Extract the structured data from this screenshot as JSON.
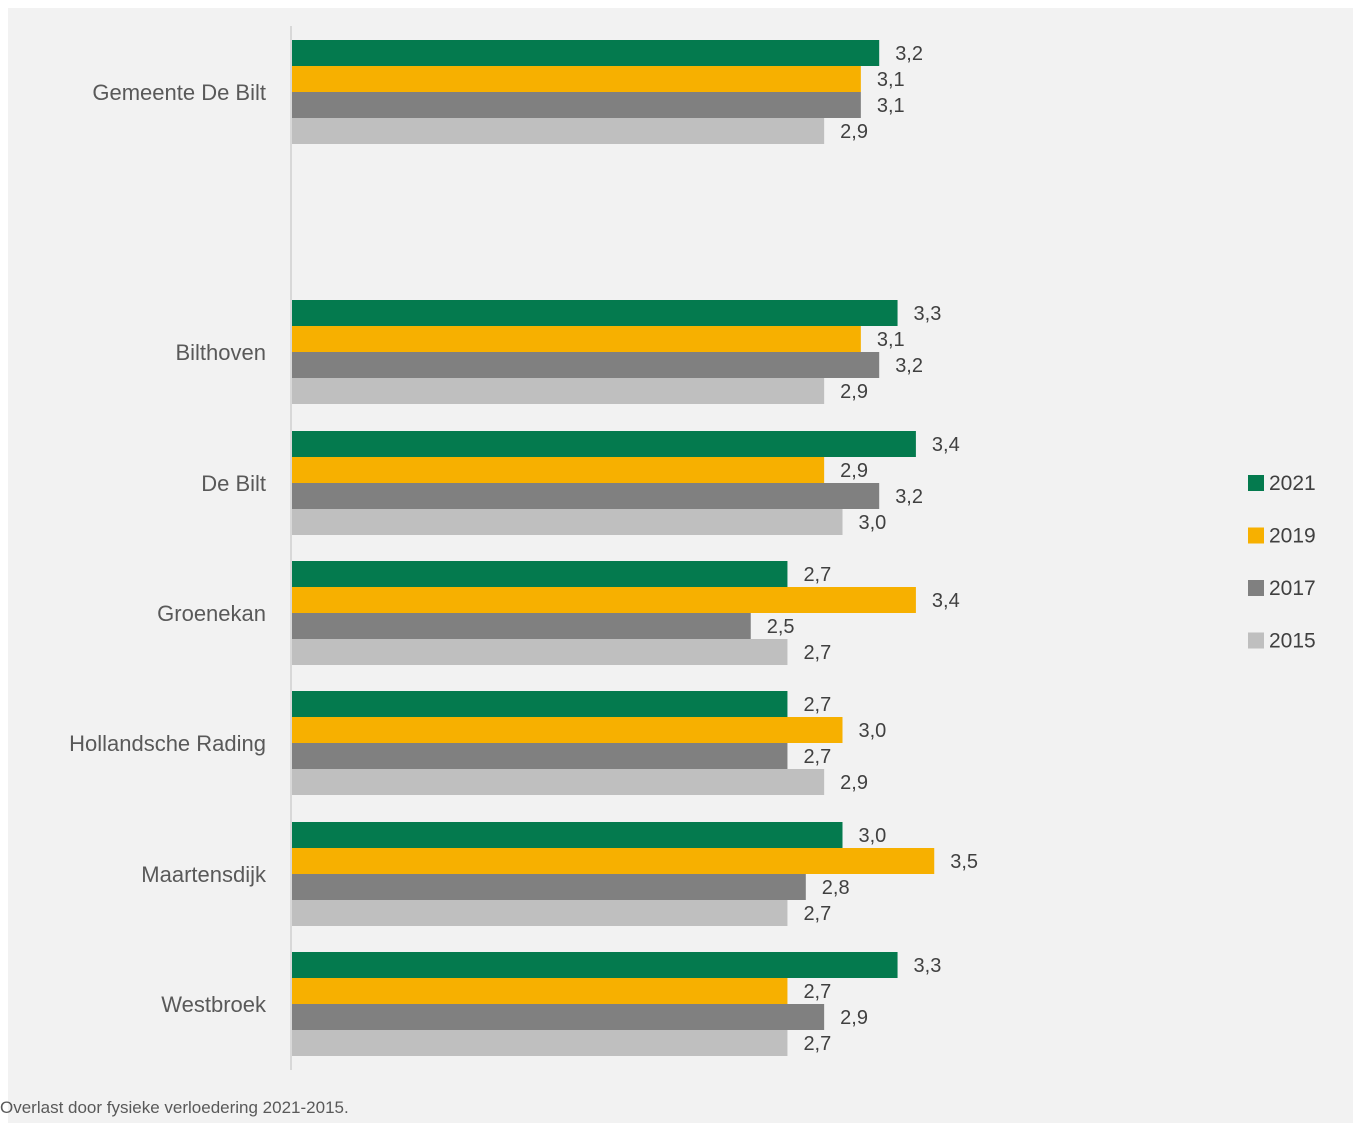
{
  "caption": "Overlast door fysieke verloedering 2021-2015.",
  "chart_data": {
    "type": "bar",
    "orientation": "horizontal",
    "categories": [
      "Gemeente De Bilt",
      "Bilthoven",
      "De Bilt",
      "Groenekan",
      "Hollandsche Rading",
      "Maartensdijk",
      "Westbroek"
    ],
    "series": [
      {
        "name": "2021",
        "color": "#047a4e",
        "values": [
          3.2,
          3.3,
          3.4,
          2.7,
          2.7,
          3.0,
          3.3
        ],
        "labels": [
          "3,2",
          "3,3",
          "3,4",
          "2,7",
          "2,7",
          "3,0",
          "3,3"
        ]
      },
      {
        "name": "2019",
        "color": "#f7b000",
        "values": [
          3.1,
          3.1,
          2.9,
          3.4,
          3.0,
          3.5,
          2.7
        ],
        "labels": [
          "3,1",
          "3,1",
          "2,9",
          "3,4",
          "3,0",
          "3,5",
          "2,7"
        ]
      },
      {
        "name": "2017",
        "color": "#808080",
        "values": [
          3.1,
          3.2,
          3.2,
          2.5,
          2.7,
          2.8,
          2.9
        ],
        "labels": [
          "3,1",
          "3,2",
          "3,2",
          "2,5",
          "2,7",
          "2,8",
          "2,9"
        ]
      },
      {
        "name": "2015",
        "color": "#bfbfbf",
        "values": [
          2.9,
          2.9,
          3.0,
          2.7,
          2.9,
          2.7,
          2.7
        ],
        "labels": [
          "2,9",
          "2,9",
          "3,0",
          "2,7",
          "2,9",
          "2,7",
          "2,7"
        ]
      }
    ],
    "xlim": [
      0,
      3.5
    ],
    "grid": false,
    "legend": "right"
  }
}
